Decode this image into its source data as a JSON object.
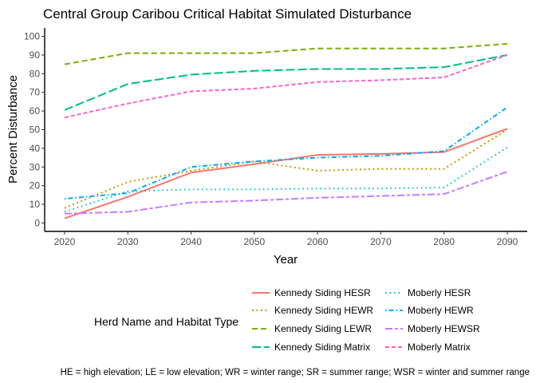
{
  "chart_data": {
    "type": "line",
    "title": "Central Group Caribou Critical Habitat Simulated Disturbance",
    "xlabel": "Year",
    "ylabel": "Percent Disturbance",
    "xlim": [
      2020,
      2090
    ],
    "ylim": [
      0,
      100
    ],
    "x_ticks": [
      "2020",
      "2030",
      "2040",
      "2050",
      "2060",
      "2070",
      "2080",
      "2090"
    ],
    "y_ticks": [
      "0",
      "10",
      "20",
      "30",
      "40",
      "50",
      "60",
      "70",
      "80",
      "90",
      "100"
    ],
    "grid": false,
    "legend_position": "bottom",
    "legend_title": "Herd Name and Habitat Type",
    "caption": "HE = high elevation; LE = low elevation; WR  = winter range; SR = summer range; WSR = winter and summer range",
    "x": [
      2020,
      2030,
      2040,
      2050,
      2060,
      2070,
      2080,
      2090
    ],
    "series": [
      {
        "name": "Kennedy Siding HESR",
        "color": "#F8766D",
        "dash": "solid",
        "values": [
          2.5,
          14,
          27,
          31.5,
          36.5,
          37,
          38,
          50.5
        ]
      },
      {
        "name": "Kennedy Siding HEWR",
        "color": "#C49A00",
        "dash": "dotted",
        "values": [
          8,
          22,
          28,
          33,
          28,
          29,
          29,
          50
        ]
      },
      {
        "name": "Kennedy Siding LEWR",
        "color": "#7CAE00",
        "dash": "dashed",
        "values": [
          85,
          91,
          91,
          91,
          93.5,
          93.5,
          93.5,
          96
        ]
      },
      {
        "name": "Kennedy Siding Matrix",
        "color": "#00BF7D",
        "dash": "longdash",
        "values": [
          60.5,
          74.5,
          79.5,
          81.5,
          82.5,
          82.5,
          83.5,
          90
        ]
      },
      {
        "name": "Moberly HESR",
        "color": "#00BFC4",
        "dash": "dotted-fine",
        "values": [
          6,
          17,
          18,
          18,
          18.5,
          18.5,
          19,
          40.5
        ]
      },
      {
        "name": "Moberly HEWR",
        "color": "#00A9FF",
        "dash": "dotdash",
        "values": [
          13,
          16,
          30,
          33,
          35,
          36,
          38.5,
          62
        ]
      },
      {
        "name": "Moberly HEWSR",
        "color": "#C77CFF",
        "dash": "twodash",
        "values": [
          5,
          6,
          11,
          12,
          13.5,
          14.5,
          15.5,
          27.5
        ]
      },
      {
        "name": "Moberly Matrix",
        "color": "#FF61CC",
        "dash": "dash2",
        "values": [
          56.5,
          64,
          70.5,
          72,
          75.5,
          76.5,
          78,
          90
        ]
      }
    ]
  }
}
